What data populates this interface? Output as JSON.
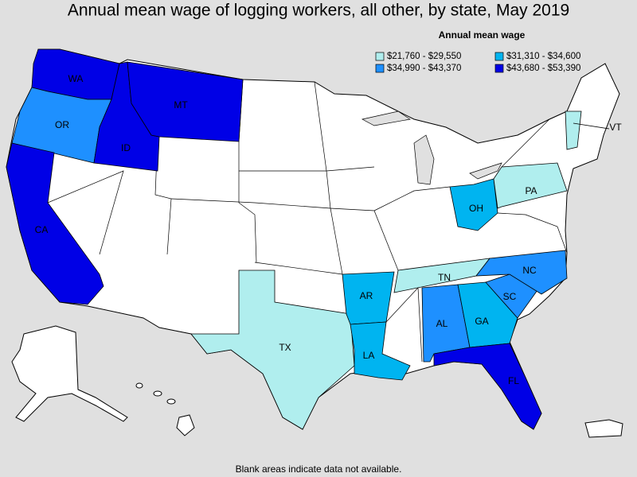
{
  "title": "Annual mean wage of logging workers, all other, by state, May 2019",
  "legend": {
    "title": "Annual mean wage",
    "items": [
      {
        "label": "$21,760 - $29,550",
        "color": "#b0eeee"
      },
      {
        "label": "$31,310 - $34,600",
        "color": "#00b4f0"
      },
      {
        "label": "$34,990 - $43,370",
        "color": "#1e90ff"
      },
      {
        "label": "$43,680 - $53,390",
        "color": "#0000e6"
      }
    ]
  },
  "states": [
    {
      "label": "WA",
      "bin": 3
    },
    {
      "label": "OR",
      "bin": 2
    },
    {
      "label": "ID",
      "bin": 3
    },
    {
      "label": "MT",
      "bin": 3
    },
    {
      "label": "CA",
      "bin": 3
    },
    {
      "label": "TX",
      "bin": 0
    },
    {
      "label": "AR",
      "bin": 1
    },
    {
      "label": "LA",
      "bin": 1
    },
    {
      "label": "TN",
      "bin": 0
    },
    {
      "label": "AL",
      "bin": 2
    },
    {
      "label": "GA",
      "bin": 1
    },
    {
      "label": "SC",
      "bin": 2
    },
    {
      "label": "NC",
      "bin": 2
    },
    {
      "label": "OH",
      "bin": 1
    },
    {
      "label": "PA",
      "bin": 0
    },
    {
      "label": "VT",
      "bin": 0
    },
    {
      "label": "FL",
      "bin": 3
    }
  ],
  "footnote": "Blank areas indicate data not available."
}
